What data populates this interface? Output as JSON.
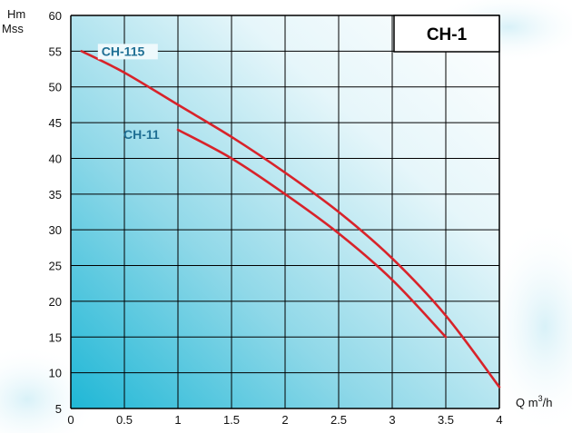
{
  "chart_data": {
    "type": "line",
    "title": "CH-1",
    "ylabel_lines": [
      "Hm",
      "Mss"
    ],
    "xlabel_prefix": "Q m",
    "xlabel_sup": "3",
    "xlabel_suffix": "/h",
    "xlim": [
      0,
      4
    ],
    "ylim": [
      5,
      60
    ],
    "x_ticks": [
      "0",
      "0.5",
      "1",
      "1.5",
      "2",
      "2.5",
      "3",
      "3.5",
      "4"
    ],
    "y_ticks": [
      "5",
      "10",
      "15",
      "20",
      "25",
      "30",
      "35",
      "40",
      "45",
      "50",
      "55",
      "60"
    ],
    "grid": true,
    "line_color": "#d8232a",
    "label_color": "#1f6f94",
    "series": [
      {
        "name": "CH-115",
        "x": [
          0.1,
          0.5,
          1.0,
          1.5,
          2.0,
          2.5,
          3.0,
          3.5,
          4.0
        ],
        "y": [
          55,
          52,
          47.5,
          43,
          38,
          32.5,
          26,
          18,
          8
        ]
      },
      {
        "name": "CH-11",
        "x": [
          1.0,
          1.5,
          2.0,
          2.5,
          3.0,
          3.5
        ],
        "y": [
          44,
          40,
          35,
          29.5,
          23,
          15
        ]
      }
    ]
  }
}
